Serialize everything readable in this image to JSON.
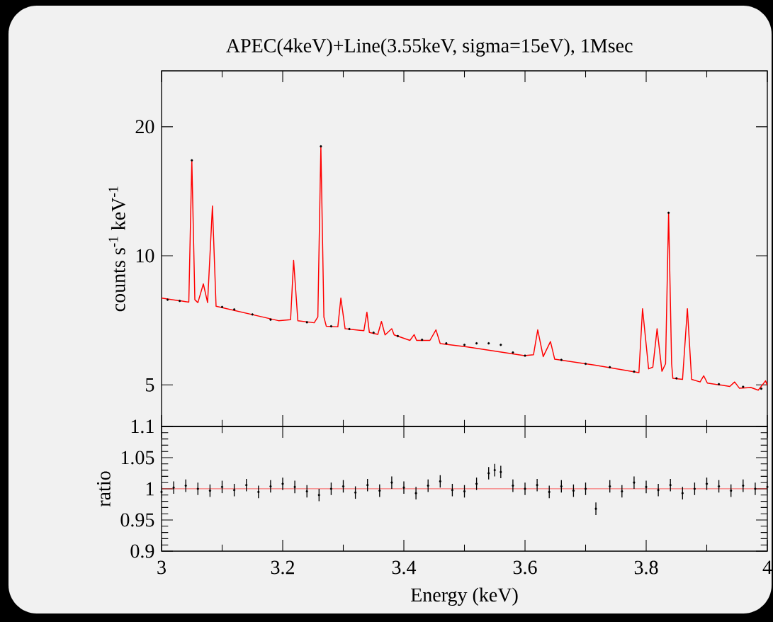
{
  "chart_data": [
    {
      "type": "line",
      "title": "APEC(4keV)+Line(3.55keV, sigma=15eV), 1Msec",
      "ylabel": "counts s$^{-1}$ keV$^{-1}$",
      "log": "y",
      "tick_labels": "y",
      "xlim": [
        3,
        4
      ],
      "xticks": [
        3,
        3.2,
        3.4,
        3.6,
        3.8,
        4
      ],
      "ylim": [
        4,
        27
      ],
      "yticks": [
        5,
        10,
        20
      ],
      "series": [
        {
          "type": "scatter",
          "color": "#000000",
          "x": [
            3.01,
            3.03,
            3.05,
            3.1,
            3.12,
            3.15,
            3.18,
            3.24,
            3.263,
            3.28,
            3.31,
            3.35,
            3.39,
            3.43,
            3.47,
            3.5,
            3.52,
            3.54,
            3.56,
            3.58,
            3.6,
            3.66,
            3.7,
            3.74,
            3.78,
            3.837,
            3.85,
            3.92,
            3.96,
            3.99
          ],
          "values": [
            7.9,
            7.85,
            16.7,
            7.6,
            7.5,
            7.3,
            7.1,
            7.0,
            18.0,
            6.85,
            6.75,
            6.62,
            6.5,
            6.37,
            6.25,
            6.2,
            6.25,
            6.25,
            6.2,
            5.95,
            5.85,
            5.72,
            5.6,
            5.5,
            5.37,
            12.6,
            5.18,
            5.02,
            4.95,
            4.9
          ]
        },
        {
          "type": "line",
          "color": "#ff0000",
          "x": [
            3.0,
            3.045,
            3.05,
            3.055,
            3.06,
            3.069,
            3.076,
            3.084,
            3.09,
            3.193,
            3.213,
            3.218,
            3.225,
            3.252,
            3.258,
            3.263,
            3.268,
            3.272,
            3.291,
            3.296,
            3.303,
            3.334,
            3.339,
            3.343,
            3.357,
            3.363,
            3.369,
            3.38,
            3.384,
            3.41,
            3.417,
            3.421,
            3.443,
            3.453,
            3.46,
            3.505,
            3.599,
            3.614,
            3.621,
            3.63,
            3.642,
            3.649,
            3.716,
            3.788,
            3.794,
            3.804,
            3.811,
            3.818,
            3.826,
            3.832,
            3.837,
            3.842,
            3.844,
            3.86,
            3.868,
            3.875,
            3.889,
            3.895,
            3.901,
            3.938,
            3.946,
            3.954,
            3.973,
            3.985,
            3.997,
            4.0
          ],
          "values": [
            7.97,
            7.8,
            16.7,
            7.9,
            7.78,
            8.6,
            7.78,
            13.07,
            7.63,
            7.06,
            7.1,
            9.76,
            7.06,
            6.98,
            7.2,
            18.0,
            7.2,
            6.85,
            6.83,
            7.97,
            6.76,
            6.69,
            7.39,
            6.63,
            6.56,
            7.03,
            6.54,
            6.76,
            6.54,
            6.35,
            6.55,
            6.35,
            6.35,
            6.72,
            6.24,
            6.13,
            5.85,
            5.88,
            6.72,
            5.82,
            6.31,
            5.74,
            5.56,
            5.34,
            7.53,
            5.45,
            5.5,
            6.76,
            5.38,
            5.6,
            12.61,
            5.6,
            5.18,
            5.15,
            7.53,
            5.15,
            5.08,
            5.25,
            5.05,
            4.96,
            5.08,
            4.91,
            4.93,
            4.86,
            5.11,
            4.99
          ]
        }
      ]
    },
    {
      "type": "scatter",
      "xlabel": "Energy (keV)",
      "ylabel": "ratio",
      "color": "#000000",
      "xlim": [
        3,
        4
      ],
      "xticks": [
        3,
        3.2,
        3.4,
        3.6,
        3.8,
        4
      ],
      "ylim": [
        0.9,
        1.1
      ],
      "yticks": [
        0.9,
        0.95,
        1,
        1.05,
        1.1
      ],
      "x": [
        3.0,
        3.02,
        3.04,
        3.06,
        3.08,
        3.1,
        3.12,
        3.14,
        3.16,
        3.18,
        3.2,
        3.22,
        3.24,
        3.26,
        3.28,
        3.3,
        3.32,
        3.34,
        3.36,
        3.38,
        3.4,
        3.42,
        3.44,
        3.46,
        3.48,
        3.5,
        3.52,
        3.54,
        3.55,
        3.56,
        3.58,
        3.6,
        3.62,
        3.64,
        3.66,
        3.68,
        3.7,
        3.717,
        3.74,
        3.76,
        3.78,
        3.8,
        3.82,
        3.84,
        3.86,
        3.88,
        3.9,
        3.92,
        3.94,
        3.96,
        3.98,
        4.0
      ],
      "values": [
        0.995,
        1.002,
        1.005,
        1.0,
        0.997,
        1.003,
        0.998,
        1.006,
        0.995,
        1.004,
        1.008,
        1.003,
        0.996,
        0.99,
        1.0,
        1.004,
        0.994,
        1.006,
        0.997,
        1.01,
        1.002,
        0.993,
        1.005,
        1.012,
        0.998,
        0.996,
        1.008,
        1.025,
        1.03,
        1.027,
        1.005,
        1.0,
        1.006,
        0.995,
        1.004,
        0.997,
        1.0,
        0.968,
        1.004,
        0.996,
        1.01,
        1.003,
        0.998,
        1.006,
        0.993,
        1.0,
        1.008,
        1.004,
        0.997,
        1.005,
        1.0,
        1.003
      ],
      "errors": [
        0.01,
        0.01,
        0.01,
        0.01,
        0.01,
        0.01,
        0.01,
        0.01,
        0.01,
        0.01,
        0.01,
        0.01,
        0.01,
        0.01,
        0.01,
        0.01,
        0.01,
        0.01,
        0.01,
        0.01,
        0.01,
        0.01,
        0.01,
        0.01,
        0.01,
        0.01,
        0.01,
        0.01,
        0.01,
        0.01,
        0.01,
        0.01,
        0.01,
        0.01,
        0.01,
        0.01,
        0.01,
        0.01,
        0.01,
        0.01,
        0.01,
        0.01,
        0.01,
        0.01,
        0.01,
        0.01,
        0.01,
        0.01,
        0.01,
        0.01,
        0.01,
        0.01
      ],
      "ref_lines": [
        {
          "axis": "y",
          "value": 1,
          "color": "#ff0000"
        }
      ]
    }
  ]
}
